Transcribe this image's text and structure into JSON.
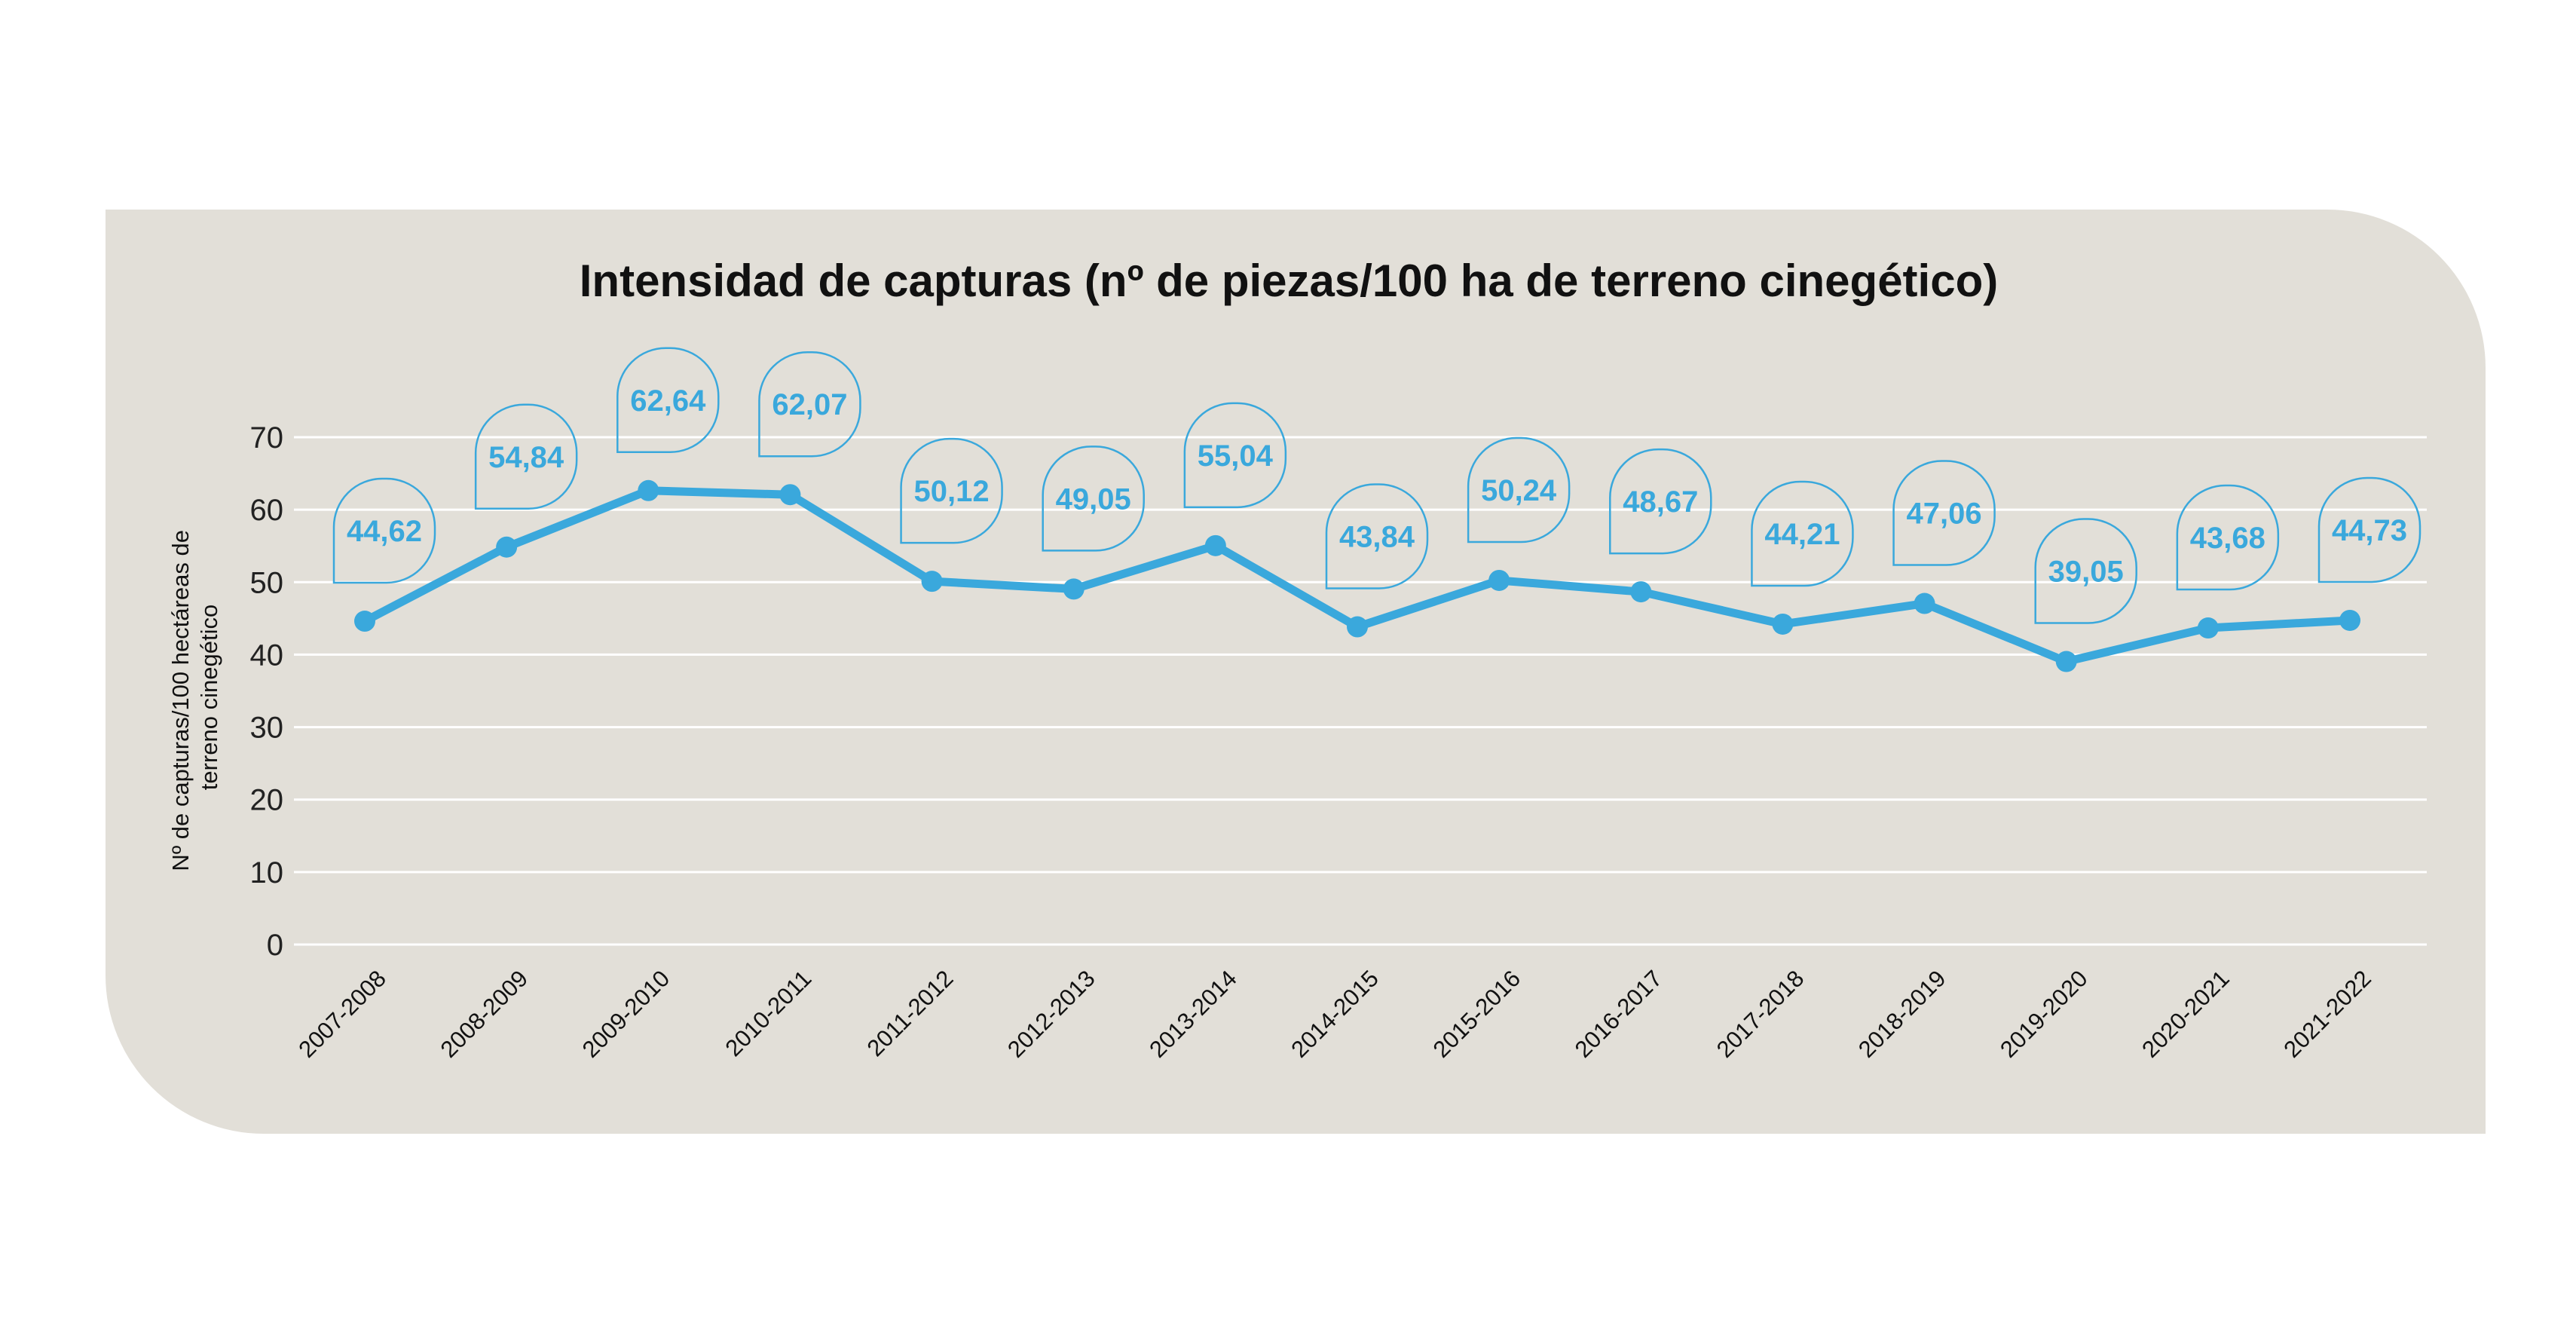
{
  "chart_data": {
    "type": "line",
    "title": "Intensidad de capturas (nº de piezas/100 ha de terreno cinegético)",
    "ylabel": [
      "Nº de capturas/100 hectáreas de",
      "terreno cinegético"
    ],
    "xlabel": "",
    "categories": [
      "2007-2008",
      "2008-2009",
      "2009-2010",
      "2010-2011",
      "2011-2012",
      "2012-2013",
      "2013-2014",
      "2014-2015",
      "2015-2016",
      "2016-2017",
      "2017-2018",
      "2018-2019",
      "2019-2020",
      "2020-2021",
      "2021-2022"
    ],
    "values": [
      44.62,
      54.84,
      62.64,
      62.07,
      50.12,
      49.05,
      55.04,
      43.84,
      50.24,
      48.67,
      44.21,
      47.06,
      39.05,
      43.68,
      44.73
    ],
    "data_labels": [
      "44,62",
      "54,84",
      "62,64",
      "62,07",
      "50,12",
      "49,05",
      "55,04",
      "43,84",
      "50,24",
      "48,67",
      "44,21",
      "47,06",
      "39,05",
      "43,68",
      "44,73"
    ],
    "yticks": [
      0,
      10,
      20,
      30,
      40,
      50,
      60,
      70
    ],
    "ylim": [
      0,
      70
    ],
    "grid": true,
    "legend": "none",
    "colors": {
      "line": "#3aa8dc",
      "card_background": "#e2dfd8",
      "grid": "#ffffff",
      "text": "#111111"
    }
  }
}
